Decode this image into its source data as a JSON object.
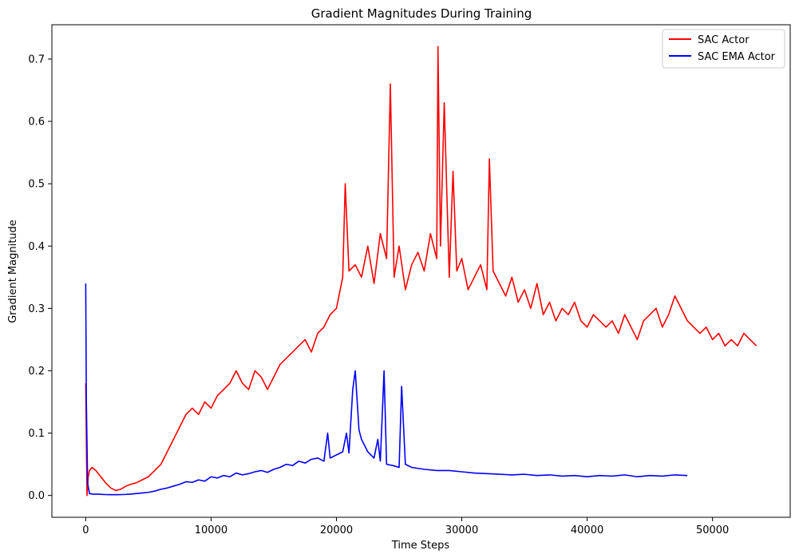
{
  "chart_data": {
    "type": "line",
    "title": "Gradient Magnitudes During Training",
    "xlabel": "Time Steps",
    "ylabel": "Gradient Magnitude",
    "xlim": [
      -2700,
      56200
    ],
    "ylim": [
      -0.035,
      0.755
    ],
    "xticks": [
      0,
      10000,
      20000,
      30000,
      40000,
      50000
    ],
    "yticks": [
      0.0,
      0.1,
      0.2,
      0.3,
      0.4,
      0.5,
      0.6,
      0.7
    ],
    "grid": false,
    "legend_position": "top-right",
    "series": [
      {
        "name": "SAC Actor",
        "color": "#ff0000",
        "x": [
          0,
          100,
          200,
          300,
          500,
          800,
          1200,
          1600,
          2000,
          2400,
          2800,
          3200,
          3600,
          4000,
          4500,
          5000,
          5500,
          6000,
          6500,
          7000,
          7500,
          8000,
          8500,
          9000,
          9500,
          10000,
          10500,
          11000,
          11500,
          12000,
          12500,
          13000,
          13500,
          14000,
          14500,
          15000,
          15500,
          16000,
          16500,
          17000,
          17500,
          18000,
          18500,
          19000,
          19500,
          20000,
          20500,
          20700,
          21000,
          21500,
          22000,
          22500,
          23000,
          23500,
          24000,
          24300,
          24600,
          25000,
          25500,
          26000,
          26500,
          27000,
          27500,
          28000,
          28100,
          28300,
          28600,
          29000,
          29300,
          29600,
          30000,
          30500,
          31000,
          31500,
          32000,
          32200,
          32500,
          33000,
          33500,
          34000,
          34500,
          35000,
          35500,
          36000,
          36500,
          37000,
          37500,
          38000,
          38500,
          39000,
          39500,
          40000,
          40500,
          41000,
          41500,
          42000,
          42500,
          43000,
          43500,
          44000,
          44500,
          45000,
          45500,
          46000,
          46500,
          47000,
          47500,
          48000,
          48500,
          49000,
          49500,
          50000,
          50500,
          51000,
          51500,
          52000,
          52500,
          53000,
          53500
        ],
        "y": [
          0.18,
          0.0,
          0.03,
          0.04,
          0.045,
          0.04,
          0.03,
          0.02,
          0.012,
          0.008,
          0.01,
          0.015,
          0.018,
          0.02,
          0.025,
          0.03,
          0.04,
          0.05,
          0.07,
          0.09,
          0.11,
          0.13,
          0.14,
          0.13,
          0.15,
          0.14,
          0.16,
          0.17,
          0.18,
          0.2,
          0.18,
          0.17,
          0.2,
          0.19,
          0.17,
          0.19,
          0.21,
          0.22,
          0.23,
          0.24,
          0.25,
          0.23,
          0.26,
          0.27,
          0.29,
          0.3,
          0.35,
          0.5,
          0.36,
          0.37,
          0.35,
          0.4,
          0.34,
          0.42,
          0.38,
          0.66,
          0.35,
          0.4,
          0.33,
          0.37,
          0.39,
          0.36,
          0.42,
          0.38,
          0.72,
          0.4,
          0.63,
          0.35,
          0.52,
          0.36,
          0.38,
          0.33,
          0.35,
          0.37,
          0.33,
          0.54,
          0.36,
          0.34,
          0.32,
          0.35,
          0.31,
          0.33,
          0.3,
          0.34,
          0.29,
          0.31,
          0.28,
          0.3,
          0.29,
          0.31,
          0.28,
          0.27,
          0.29,
          0.28,
          0.27,
          0.28,
          0.26,
          0.29,
          0.27,
          0.25,
          0.28,
          0.29,
          0.3,
          0.27,
          0.29,
          0.32,
          0.3,
          0.28,
          0.27,
          0.26,
          0.27,
          0.25,
          0.26,
          0.24,
          0.25,
          0.24,
          0.26,
          0.25,
          0.24
        ]
      },
      {
        "name": "SAC EMA Actor",
        "color": "#0000ff",
        "x": [
          0,
          50,
          150,
          300,
          600,
          1000,
          1500,
          2000,
          2500,
          3000,
          3500,
          4000,
          4500,
          5000,
          5500,
          6000,
          6500,
          7000,
          7500,
          8000,
          8500,
          9000,
          9500,
          10000,
          10500,
          11000,
          11500,
          12000,
          12500,
          13000,
          13500,
          14000,
          14500,
          15000,
          15500,
          16000,
          16500,
          17000,
          17500,
          18000,
          18500,
          19000,
          19300,
          19500,
          20000,
          20500,
          20800,
          21000,
          21300,
          21500,
          21800,
          22000,
          22500,
          23000,
          23300,
          23500,
          23800,
          24000,
          24500,
          25000,
          25200,
          25500,
          26000,
          27000,
          28000,
          29000,
          30000,
          31000,
          32000,
          33000,
          34000,
          35000,
          36000,
          37000,
          38000,
          39000,
          40000,
          41000,
          42000,
          43000,
          44000,
          45000,
          46000,
          47000,
          48000
        ],
        "y": [
          0.34,
          0.15,
          0.02,
          0.003,
          0.002,
          0.002,
          0.0015,
          0.0012,
          0.0012,
          0.0015,
          0.002,
          0.003,
          0.004,
          0.005,
          0.007,
          0.01,
          0.012,
          0.015,
          0.018,
          0.022,
          0.021,
          0.025,
          0.023,
          0.03,
          0.028,
          0.032,
          0.03,
          0.036,
          0.033,
          0.035,
          0.038,
          0.04,
          0.037,
          0.042,
          0.045,
          0.05,
          0.048,
          0.055,
          0.052,
          0.058,
          0.06,
          0.055,
          0.1,
          0.06,
          0.065,
          0.07,
          0.1,
          0.068,
          0.17,
          0.2,
          0.105,
          0.09,
          0.07,
          0.06,
          0.09,
          0.055,
          0.2,
          0.05,
          0.048,
          0.045,
          0.175,
          0.05,
          0.045,
          0.042,
          0.04,
          0.04,
          0.038,
          0.036,
          0.035,
          0.034,
          0.033,
          0.034,
          0.032,
          0.033,
          0.031,
          0.032,
          0.03,
          0.032,
          0.031,
          0.033,
          0.03,
          0.032,
          0.031,
          0.033,
          0.032
        ]
      }
    ]
  }
}
